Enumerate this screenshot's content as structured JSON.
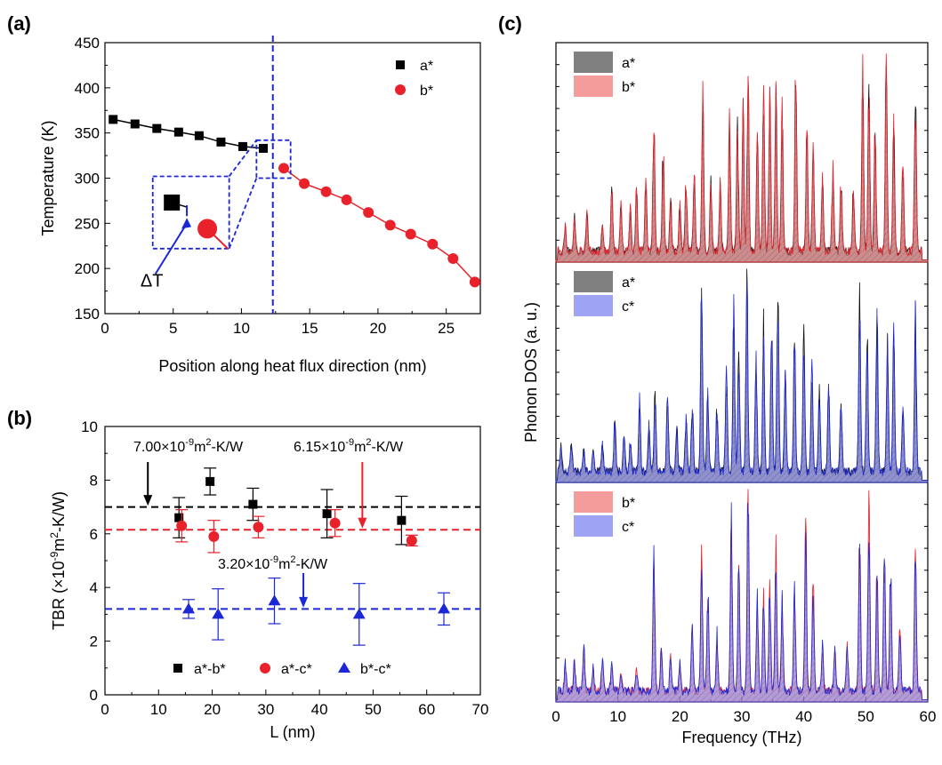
{
  "panel_labels": {
    "a": "(a)",
    "b": "(b)",
    "c": "(c)"
  },
  "colors": {
    "a_star": "#000000",
    "b_star": "#e8212b",
    "c_star": "#1c28d6",
    "guide": "#1c28d6"
  },
  "chart_data": [
    {
      "id": "a",
      "type": "scatter",
      "xlabel": "Position along heat flux direction (nm)",
      "ylabel": "Temperature (K)",
      "xlim": [
        0,
        27.5
      ],
      "ylim": [
        150,
        450
      ],
      "xticks": [
        0,
        5,
        10,
        15,
        20,
        25
      ],
      "yticks": [
        150,
        200,
        250,
        300,
        350,
        400,
        450
      ],
      "interface_x": 12.3,
      "series": [
        {
          "name": "a*",
          "x": [
            0.6,
            2.2,
            3.8,
            5.4,
            6.9,
            8.5,
            10.1,
            11.6
          ],
          "y": [
            365,
            360,
            355,
            351,
            347,
            340,
            335,
            333
          ]
        },
        {
          "name": "b*",
          "x": [
            13.1,
            14.6,
            16.2,
            17.7,
            19.3,
            20.9,
            22.4,
            24.0,
            25.5,
            27.1
          ],
          "y": [
            311,
            294,
            285,
            276,
            262,
            248,
            238,
            227,
            211,
            185
          ]
        }
      ],
      "annotations": [
        {
          "text": "ΔT"
        }
      ]
    },
    {
      "id": "b",
      "type": "scatter",
      "xlabel": "L (nm)",
      "ylabel": "TBR (×10-9m2-K/W)",
      "xlim": [
        0,
        70
      ],
      "ylim": [
        0,
        10
      ],
      "xticks": [
        0,
        10,
        20,
        30,
        40,
        50,
        60,
        70
      ],
      "yticks": [
        0,
        2,
        4,
        6,
        8,
        10
      ],
      "series": [
        {
          "name": "a*-b*",
          "x": [
            13.8,
            19.6,
            27.6,
            41.4,
            55.3
          ],
          "y": [
            6.6,
            7.95,
            7.1,
            6.75,
            6.5
          ],
          "err": [
            0.75,
            0.5,
            0.6,
            0.9,
            0.9
          ]
        },
        {
          "name": "a*-c*",
          "x": [
            14.3,
            20.3,
            28.6,
            42.9,
            57.2
          ],
          "y": [
            6.3,
            5.9,
            6.25,
            6.4,
            5.75
          ],
          "err": [
            0.6,
            0.6,
            0.4,
            0.5,
            0.2
          ]
        },
        {
          "name": "b*-c*",
          "x": [
            15.6,
            21.1,
            31.6,
            47.4,
            63.2
          ],
          "y": [
            3.2,
            3.0,
            3.5,
            3.0,
            3.2
          ],
          "err": [
            0.35,
            0.95,
            0.85,
            1.15,
            0.6
          ]
        }
      ],
      "reference_lines": [
        {
          "y": 7.0,
          "label_main": "7.00×10",
          "label_exp": "-9",
          "label_m": "m",
          "label_sq": "2",
          "label_tail": "-K/W"
        },
        {
          "y": 6.15,
          "label_main": "6.15×10",
          "label_exp": "-9",
          "label_m": "m",
          "label_sq": "2",
          "label_tail": "-K/W"
        },
        {
          "y": 3.2,
          "label_main": "3.20×10",
          "label_exp": "-9",
          "label_m": "m",
          "label_sq": "2",
          "label_tail": "-K/W"
        }
      ],
      "ylabel_parts": {
        "pre": "TBR (×10",
        "exp": "-9",
        "mid": "m",
        "sq": "2",
        "post": "-K/W)"
      }
    },
    {
      "id": "c",
      "type": "area",
      "xlabel": "Frequency (THz)",
      "ylabel": "Phonon DOS (a. u.)",
      "xlim": [
        0,
        60
      ],
      "xticks": [
        0,
        10,
        20,
        30,
        40,
        50,
        60
      ],
      "subpanels": [
        {
          "legend": [
            "a*",
            "b*"
          ],
          "peaks": [
            [
              1.5,
              0.1
            ],
            [
              3,
              0.15
            ],
            [
              5,
              0.17
            ],
            [
              7.5,
              0.12
            ],
            [
              9,
              0.3
            ],
            [
              10.5,
              0.22
            ],
            [
              12,
              0.18
            ],
            [
              13,
              0.28
            ],
            [
              14.5,
              0.3
            ],
            [
              15.8,
              0.58
            ],
            [
              17.3,
              0.45
            ],
            [
              18.5,
              0.22
            ],
            [
              20,
              0.2
            ],
            [
              21,
              0.3
            ],
            [
              22.3,
              0.36
            ],
            [
              23.7,
              0.7
            ],
            [
              25,
              0.32
            ],
            [
              26.5,
              0.28
            ],
            [
              28,
              0.55
            ],
            [
              29.3,
              0.55
            ],
            [
              30.2,
              0.62
            ],
            [
              31,
              0.75
            ],
            [
              32.5,
              0.5
            ],
            [
              33.5,
              0.72
            ],
            [
              34.5,
              0.72
            ],
            [
              35.5,
              0.68
            ],
            [
              36.5,
              0.6
            ],
            [
              38.7,
              0.86
            ],
            [
              40.5,
              0.55
            ],
            [
              41.5,
              0.45
            ],
            [
              43,
              0.3
            ],
            [
              44.7,
              0.38
            ],
            [
              46,
              0.3
            ],
            [
              48,
              0.3
            ],
            [
              49.5,
              0.76
            ],
            [
              50.5,
              0.72
            ],
            [
              51.5,
              0.55
            ],
            [
              53.3,
              0.82
            ],
            [
              54.5,
              0.55
            ],
            [
              56,
              0.4
            ],
            [
              58,
              0.7
            ]
          ]
        },
        {
          "legend": [
            "a*",
            "c*"
          ],
          "peaks": [
            [
              0.8,
              0.12
            ],
            [
              2.5,
              0.12
            ],
            [
              4.5,
              0.1
            ],
            [
              6,
              0.1
            ],
            [
              7.5,
              0.12
            ],
            [
              9.5,
              0.22
            ],
            [
              11,
              0.18
            ],
            [
              12,
              0.13
            ],
            [
              13.5,
              0.3
            ],
            [
              15,
              0.2
            ],
            [
              16,
              0.35
            ],
            [
              18,
              0.32
            ],
            [
              19.5,
              0.2
            ],
            [
              21,
              0.25
            ],
            [
              22,
              0.3
            ],
            [
              23.5,
              0.8
            ],
            [
              24.5,
              0.35
            ],
            [
              26,
              0.28
            ],
            [
              27.5,
              0.42
            ],
            [
              28.7,
              0.7
            ],
            [
              29.5,
              0.5
            ],
            [
              30.8,
              0.88
            ],
            [
              32.3,
              0.5
            ],
            [
              33.5,
              0.62
            ],
            [
              34.8,
              0.65
            ],
            [
              35.8,
              0.82
            ],
            [
              37,
              0.4
            ],
            [
              38.5,
              0.58
            ],
            [
              40,
              0.62
            ],
            [
              41.3,
              0.45
            ],
            [
              42.5,
              0.35
            ],
            [
              44,
              0.35
            ],
            [
              46,
              0.3
            ],
            [
              49,
              0.75
            ],
            [
              50.2,
              0.62
            ],
            [
              51.8,
              0.7
            ],
            [
              53.5,
              0.55
            ],
            [
              54.5,
              0.6
            ],
            [
              56,
              0.3
            ],
            [
              58,
              0.68
            ]
          ]
        },
        {
          "legend": [
            "b*",
            "c*"
          ],
          "peaks": [
            [
              1.5,
              0.12
            ],
            [
              3,
              0.13
            ],
            [
              4.5,
              0.2
            ],
            [
              6,
              0.1
            ],
            [
              7.5,
              0.15
            ],
            [
              9,
              0.12
            ],
            [
              10.5,
              0.08
            ],
            [
              13,
              0.1
            ],
            [
              15.8,
              0.58
            ],
            [
              17,
              0.2
            ],
            [
              18.5,
              0.15
            ],
            [
              20,
              0.12
            ],
            [
              22,
              0.3
            ],
            [
              23.5,
              0.58
            ],
            [
              24.5,
              0.45
            ],
            [
              26,
              0.25
            ],
            [
              28.3,
              0.78
            ],
            [
              29.5,
              0.55
            ],
            [
              31,
              0.9
            ],
            [
              32.5,
              0.4
            ],
            [
              33.5,
              0.42
            ],
            [
              34.5,
              0.48
            ],
            [
              35.5,
              0.62
            ],
            [
              36.5,
              0.4
            ],
            [
              38.5,
              0.45
            ],
            [
              40.3,
              0.75
            ],
            [
              41.5,
              0.5
            ],
            [
              43,
              0.2
            ],
            [
              45,
              0.18
            ],
            [
              47,
              0.2
            ],
            [
              49,
              0.68
            ],
            [
              50.5,
              0.83
            ],
            [
              51.8,
              0.55
            ],
            [
              53,
              0.6
            ],
            [
              54,
              0.55
            ],
            [
              55.5,
              0.3
            ],
            [
              58,
              0.62
            ]
          ]
        }
      ]
    }
  ]
}
